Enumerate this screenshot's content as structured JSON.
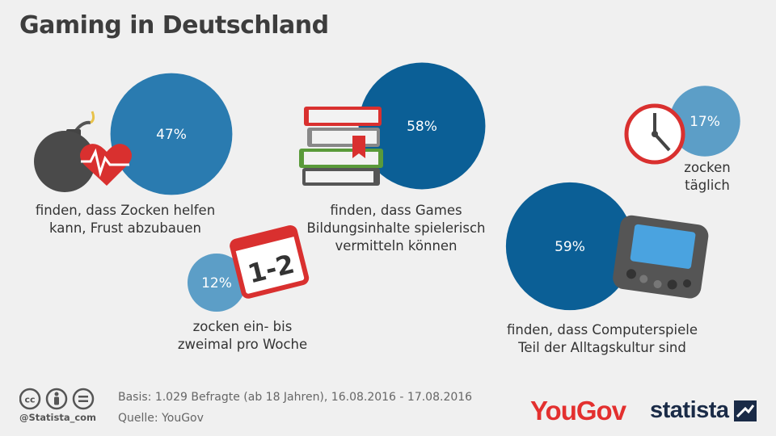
{
  "title": "Gaming in Deutschland",
  "chart_data": {
    "type": "bubble",
    "items": [
      {
        "id": "frust",
        "value": 47,
        "label": "47%",
        "caption": [
          "finden, dass Zocken helfen",
          "kann, Frust abzubauen"
        ],
        "color": "#2a7bb0",
        "icon": "bomb-heart-icon"
      },
      {
        "id": "bildung",
        "value": 58,
        "label": "58%",
        "caption": [
          "finden, dass Games",
          "Bildungsinhalte spielerisch",
          "vermitteln können"
        ],
        "color": "#0b5f96",
        "icon": "books-icon"
      },
      {
        "id": "taeglich",
        "value": 17,
        "label": "17%",
        "caption": [
          "zocken",
          "täglich"
        ],
        "color": "#5c9ec7",
        "icon": "clock-icon"
      },
      {
        "id": "woche",
        "value": 12,
        "label": "12%",
        "caption": [
          "zocken ein- bis",
          "zweimal pro Woche"
        ],
        "color": "#5c9ec7",
        "icon": "calendar-icon"
      },
      {
        "id": "alltag",
        "value": 59,
        "label": "59%",
        "caption": [
          "finden, dass Computerspiele",
          "Teil der Alltagskultur sind"
        ],
        "color": "#0b5f96",
        "icon": "handheld-console-icon"
      }
    ],
    "calendar_text": "1-2"
  },
  "footer": {
    "basis": "Basis: 1.029 Befragte (ab 18 Jahren), 16.08.2016 - 17.08.2016",
    "source": "Quelle: YouGov",
    "handle": "@Statista_com",
    "yougov": "YouGov",
    "statista": "statista"
  }
}
